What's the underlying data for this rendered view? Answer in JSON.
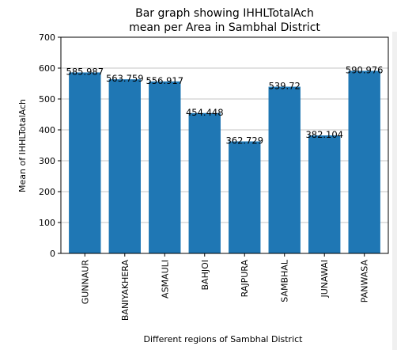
{
  "chart_data": {
    "type": "bar",
    "title_lines": [
      "Bar graph showing IHHLTotalAch",
      "mean per Area in Sambhal District"
    ],
    "xlabel": "Different regions of Sambhal District",
    "ylabel": "Mean of IHHLTotalAch",
    "categories": [
      "GUNNAUR",
      "BANIYAKHERA",
      "ASMAULI",
      "BAHJOI",
      "RAJPURA",
      "SAMBHAL",
      "JUNAWAI",
      "PANWASA"
    ],
    "values": [
      585.987,
      563.759,
      556.917,
      454.448,
      362.729,
      539.72,
      382.104,
      590.976
    ],
    "value_labels": [
      "585.987",
      "563.759",
      "556.917",
      "454.448",
      "362.729",
      "539.72",
      "382.104",
      "590.976"
    ],
    "ylim": [
      0,
      700
    ],
    "yticks": [
      0,
      100,
      200,
      300,
      400,
      500,
      600,
      700
    ],
    "grid": "horizontal",
    "bar_color": "#1f77b4"
  }
}
